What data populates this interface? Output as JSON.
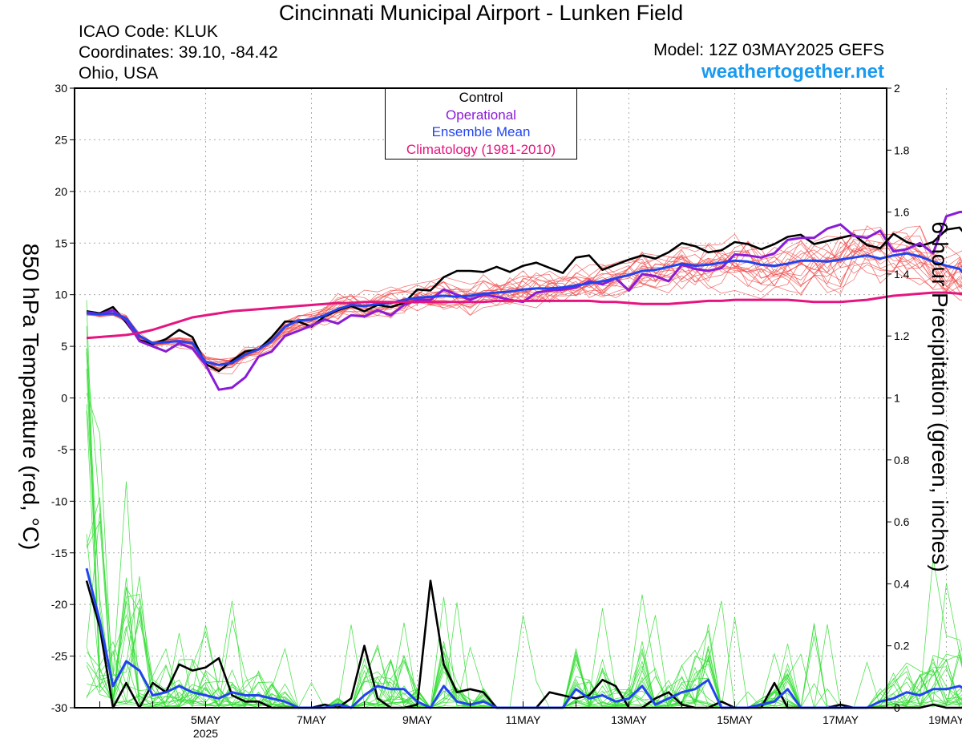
{
  "header": {
    "title": "Cincinnati Municipal Airport - Lunken Field",
    "icao": "ICAO Code: KLUK",
    "coordinates": "Coordinates: 39.10, -84.42",
    "location": "Ohio, USA",
    "model": "Model: 12Z 03MAY2025 GEFS",
    "site": "weathertogether.net"
  },
  "colors": {
    "temp_members": "#f04a4a",
    "precip_members": "#33dd33",
    "control": "#000000",
    "operational": "#8a1bd6",
    "ensemble_mean": "#2244ee",
    "climatology": "#e5157f",
    "site_link": "#1a9bf0"
  },
  "chart_data": {
    "type": "line",
    "title": "Cincinnati Municipal Airport - Lunken Field",
    "ylabel": "850 hPa Temperature (red, °C)",
    "y2label": "6-hour Precipitation (green, inches)",
    "x_axis": {
      "start": "2025-05-03T18Z",
      "step_hours": 6,
      "tick_labels": [
        "5MAY",
        "7MAY",
        "9MAY",
        "11MAY",
        "13MAY",
        "15MAY",
        "17MAY",
        "19MAY"
      ],
      "year_label": "2025"
    },
    "ylim": [
      -30,
      30
    ],
    "yticks": [
      30,
      25,
      20,
      15,
      10,
      5,
      0,
      -5,
      -10,
      -15,
      -20,
      -25,
      -30
    ],
    "y2lim": [
      0,
      2
    ],
    "y2ticks": [
      2,
      1.8,
      1.6,
      1.4,
      1.2,
      1,
      0.8,
      0.6,
      0.4,
      0.2,
      0
    ],
    "grid": true,
    "legend": {
      "placement": "top-center",
      "entries": [
        "Control",
        "Operational",
        "Ensemble Mean",
        "Climatology (1981-2010)"
      ]
    },
    "series": [
      {
        "name": "Control",
        "axis": "temperature",
        "values": [
          8.4,
          8.2,
          8.8,
          7.3,
          5.6,
          5.2,
          5.7,
          6.6,
          5.9,
          3.3,
          2.6,
          3.6,
          4.5,
          4.7,
          5.9,
          7.4,
          7.4,
          6.9,
          7.9,
          8.5,
          8.9,
          8.4,
          9.0,
          8.8,
          9.2,
          10.5,
          10.4,
          11.7,
          12.3,
          12.3,
          12.2,
          12.7,
          12.2,
          12.8,
          13.1,
          12.6,
          12.1,
          13.6,
          13.8,
          12.4,
          12.9,
          13.4,
          13.8,
          13.5,
          14.1,
          15.0,
          14.7,
          14.1,
          14.3,
          15.1,
          14.9,
          14.4,
          14.9,
          15.6,
          15.8,
          14.9,
          15.2,
          15.5,
          15.8,
          14.8,
          14.5,
          15.9,
          15.1,
          14.7,
          15.1,
          16.3,
          16.5,
          14.9
        ]
      },
      {
        "name": "Operational",
        "axis": "temperature",
        "values": [
          8.3,
          8.1,
          8.5,
          7.5,
          5.5,
          5.0,
          4.5,
          5.3,
          4.8,
          3.2,
          0.8,
          1.0,
          2.0,
          4.0,
          4.5,
          6.0,
          6.5,
          7.0,
          7.6,
          7.2,
          8.0,
          7.9,
          8.5,
          8.0,
          9.0,
          9.5,
          9.5,
          10.5,
          10.0,
          9.5,
          10.0,
          9.8,
          9.5,
          9.3,
          10.2,
          10.4,
          10.5,
          10.7,
          11.3,
          11.0,
          11.6,
          10.4,
          12.0,
          11.8,
          11.3,
          12.9,
          12.5,
          12.3,
          12.6,
          13.9,
          13.8,
          13.6,
          14.0,
          15.3,
          15.5,
          15.5,
          16.4,
          16.8,
          15.7,
          15.5,
          16.2,
          14.2,
          14.4,
          15.0,
          14.0,
          17.6,
          18.0,
          18.1
        ]
      },
      {
        "name": "Ensemble Mean",
        "axis": "temperature",
        "values": [
          8.2,
          8.1,
          8.2,
          7.7,
          6.0,
          5.3,
          5.4,
          5.5,
          5.3,
          3.5,
          3.2,
          3.4,
          4.2,
          4.7,
          5.5,
          6.9,
          7.5,
          7.6,
          8.0,
          8.6,
          9.0,
          8.9,
          9.1,
          9.2,
          9.5,
          9.7,
          9.8,
          9.9,
          9.8,
          9.9,
          10.1,
          10.2,
          10.3,
          10.5,
          10.6,
          10.6,
          10.7,
          10.9,
          11.1,
          11.3,
          11.6,
          11.9,
          12.3,
          12.4,
          12.7,
          13.0,
          12.8,
          12.9,
          13.1,
          13.3,
          13.2,
          12.9,
          12.8,
          13.0,
          13.3,
          13.3,
          13.2,
          13.4,
          13.6,
          13.8,
          13.5,
          13.8,
          14.0,
          13.7,
          13.2,
          12.8,
          12.5,
          11.0
        ]
      },
      {
        "name": "Climatology (1981-2010)",
        "axis": "temperature",
        "values": [
          5.8,
          5.9,
          6.0,
          6.1,
          6.3,
          6.6,
          7.0,
          7.4,
          7.8,
          8.0,
          8.2,
          8.4,
          8.5,
          8.6,
          8.7,
          8.8,
          8.9,
          9.0,
          9.1,
          9.2,
          9.2,
          9.3,
          9.3,
          9.3,
          9.3,
          9.3,
          9.3,
          9.3,
          9.3,
          9.3,
          9.3,
          9.4,
          9.4,
          9.4,
          9.4,
          9.4,
          9.4,
          9.4,
          9.4,
          9.3,
          9.3,
          9.2,
          9.1,
          9.1,
          9.1,
          9.2,
          9.3,
          9.4,
          9.4,
          9.5,
          9.5,
          9.5,
          9.5,
          9.5,
          9.4,
          9.3,
          9.3,
          9.3,
          9.4,
          9.5,
          9.7,
          9.9,
          10.0,
          10.1,
          10.2,
          10.2,
          10.1,
          10.0
        ]
      },
      {
        "name": "Control",
        "axis": "precipitation",
        "values": [
          0.41,
          0.26,
          0.0,
          0.08,
          0.0,
          0.08,
          0.05,
          0.14,
          0.12,
          0.13,
          0.16,
          0.04,
          0.02,
          0.02,
          0.0,
          0.0,
          0.0,
          0.0,
          0.01,
          0.0,
          0.03,
          0.2,
          0.03,
          0.0,
          0.0,
          0.01,
          0.41,
          0.14,
          0.05,
          0.06,
          0.05,
          0.0,
          0.0,
          0.0,
          0.0,
          0.05,
          0.04,
          0.03,
          0.04,
          0.09,
          0.07,
          0.0,
          0.0,
          0.03,
          0.05,
          0.01,
          0.0,
          0.0,
          0.02,
          0.0,
          0.0,
          0.0,
          0.08,
          0.0,
          0.0,
          0.0,
          0.0,
          0.01,
          0.0,
          0.0,
          0.0,
          0.0,
          0.0,
          0.0,
          0.01,
          0.0,
          0.0,
          0.0,
          0.01,
          0.0,
          0.0
        ]
      },
      {
        "name": "Ensemble Mean",
        "axis": "precipitation",
        "values": [
          0.45,
          0.28,
          0.07,
          0.15,
          0.12,
          0.04,
          0.05,
          0.07,
          0.05,
          0.04,
          0.03,
          0.05,
          0.04,
          0.04,
          0.03,
          0.02,
          0.0,
          0.0,
          0.0,
          0.01,
          0.0,
          0.04,
          0.07,
          0.06,
          0.06,
          0.02,
          0.0,
          0.07,
          0.02,
          0.01,
          0.02,
          0.0,
          0.0,
          0.0,
          0.0,
          0.0,
          0.0,
          0.06,
          0.03,
          0.04,
          0.02,
          0.03,
          0.07,
          0.01,
          0.03,
          0.05,
          0.06,
          0.09,
          0.0,
          0.0,
          0.0,
          0.01,
          0.02,
          0.06,
          0.0,
          0.0,
          0.0,
          0.0,
          0.0,
          0.0,
          0.02,
          0.03,
          0.05,
          0.04,
          0.06,
          0.06,
          0.07,
          0.04,
          0.06,
          0.01,
          0.01
        ]
      }
    ]
  }
}
